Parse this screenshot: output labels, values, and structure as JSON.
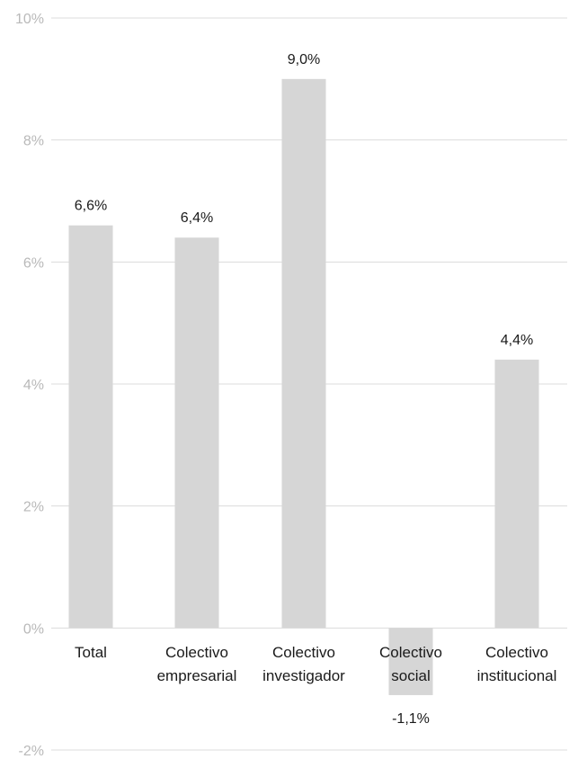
{
  "chart_data": {
    "type": "bar",
    "title": "",
    "xlabel": "",
    "ylabel": "",
    "ylim": [
      -2,
      10
    ],
    "yticks": [
      -2,
      0,
      2,
      4,
      6,
      8,
      10
    ],
    "ytick_labels": [
      "-2%",
      "0%",
      "2%",
      "4%",
      "6%",
      "8%",
      "10%"
    ],
    "grid": true,
    "categories": [
      [
        "Total"
      ],
      [
        "Colectivo",
        "empresarial"
      ],
      [
        "Colectivo",
        "investigador"
      ],
      [
        "Colectivo",
        "social"
      ],
      [
        "Colectivo",
        "institucional"
      ]
    ],
    "values": [
      6.6,
      6.4,
      9.0,
      -1.1,
      4.4
    ],
    "data_labels": [
      "6,6%",
      "6,4%",
      "9,0%",
      "-1,1%",
      "4,4%"
    ],
    "colors": {
      "bar": "#d6d6d6",
      "grid": "#dcdcdc",
      "tick_text": "#b9b9b9",
      "label_text": "#1a1a1a"
    }
  }
}
